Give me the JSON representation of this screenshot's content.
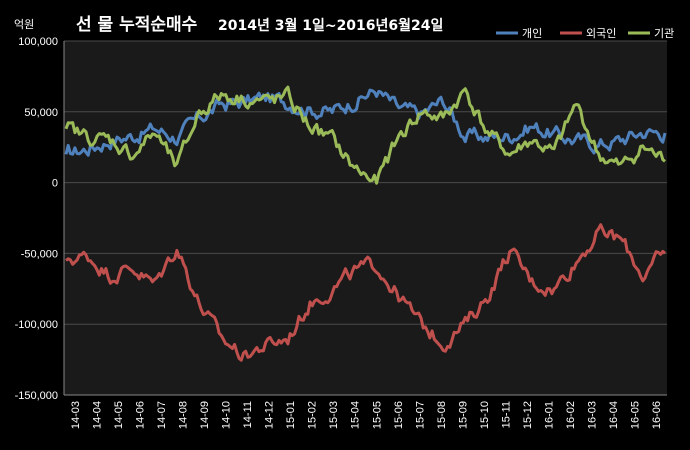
{
  "chart_data": {
    "type": "line",
    "title": "선 물 누적순매수",
    "subtitle": "2014년 3월 1일~2016년6월24일",
    "ylabel": "억원",
    "ylim": [
      -150000,
      100000
    ],
    "yticks": [
      "100,000",
      "50,000",
      "0",
      "-50,000",
      "-100,000",
      "-150,000"
    ],
    "categories": [
      "14-03",
      "14-04",
      "14-05",
      "14-06",
      "14-07",
      "14-08",
      "14-09",
      "14-10",
      "14-11",
      "14-12",
      "15-01",
      "15-02",
      "15-03",
      "15-04",
      "15-05",
      "15-06",
      "15-07",
      "15-08",
      "15-09",
      "15-10",
      "15-11",
      "15-12",
      "16-01",
      "16-02",
      "16-03",
      "16-04",
      "16-05",
      "16-06"
    ],
    "grid": true,
    "legend_position": "top-right",
    "series": [
      {
        "name": "개인",
        "color": "#4f81bd",
        "values": [
          20000,
          24000,
          30000,
          33000,
          38000,
          32000,
          45000,
          55000,
          57000,
          60000,
          57000,
          52000,
          50000,
          58000,
          65000,
          52000,
          48000,
          58000,
          33000,
          32000,
          33000,
          40000,
          34000,
          30000,
          27000,
          30000,
          36000,
          35000
        ]
      },
      {
        "name": "외국인",
        "color": "#c0504d",
        "values": [
          -55000,
          -52000,
          -65000,
          -60000,
          -72000,
          -45000,
          -85000,
          -110000,
          -122000,
          -115000,
          -110000,
          -85000,
          -75000,
          -63000,
          -58000,
          -80000,
          -100000,
          -113000,
          -100000,
          -80000,
          -48000,
          -70000,
          -75000,
          -55000,
          -35000,
          -40000,
          -65000,
          -50000
        ]
      },
      {
        "name": "기관",
        "color": "#9bbb59",
        "values": [
          38000,
          32000,
          30000,
          20000,
          35000,
          10000,
          50000,
          62000,
          60000,
          57000,
          60000,
          40000,
          30000,
          10000,
          0,
          32000,
          50000,
          45000,
          65000,
          35000,
          20000,
          30000,
          20000,
          55000,
          20000,
          10000,
          25000,
          15000
        ]
      }
    ]
  }
}
